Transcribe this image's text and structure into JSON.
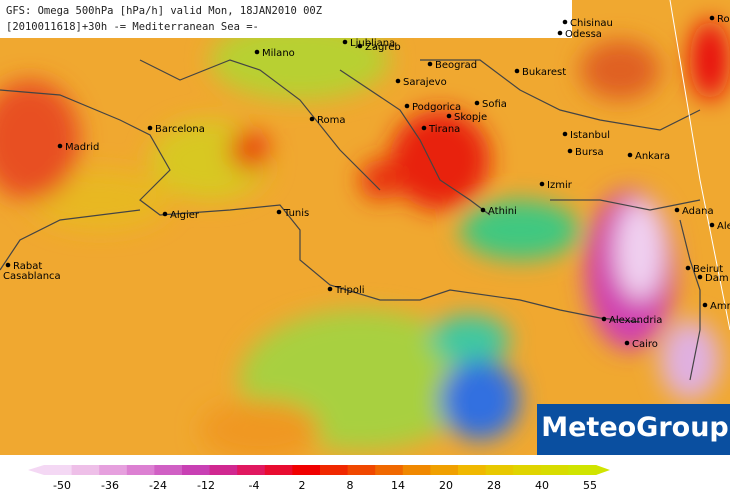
{
  "header": {
    "line1": "GFS: Omega 500hPa [hPa/h] valid Mon, 18JAN2010 00Z",
    "line2": "[2010011618]+30h -= Mediterranean Sea =-"
  },
  "cities": [
    "Chisinau",
    "Odessa",
    "Ro",
    "Milano",
    "Ljubljana",
    "Zagreb",
    "Beograd",
    "Bukarest",
    "Sarajevo",
    "Podgorica",
    "Sofia",
    "Skopje",
    "Tirana",
    "Roma",
    "Barcelona",
    "Madrid",
    "Istanbul",
    "Bursa",
    "Ankara",
    "Izmir",
    "Athini",
    "Algier",
    "Tunis",
    "Tripoli",
    "Rabat",
    "Casablanca",
    "Adana",
    "Ale",
    "Beirut",
    "Dam",
    "Amm",
    "Alexandria",
    "Cairo"
  ],
  "legend": {
    "ticks": [
      -50,
      -36,
      -24,
      -12,
      -4,
      2,
      8,
      14,
      20,
      28,
      40,
      55
    ],
    "colors": [
      "#f4d8f4",
      "#eebfe8",
      "#e6a0de",
      "#dc80d2",
      "#d060c4",
      "#c840b4",
      "#d02890",
      "#e01860",
      "#e80c30",
      "#f00000",
      "#f02800",
      "#f04800",
      "#f06800",
      "#f08800",
      "#f0a000",
      "#f0b800",
      "#e8c800",
      "#e0d400",
      "#d8dc00",
      "#d0e400"
    ]
  },
  "logo": "MeteoGroup"
}
